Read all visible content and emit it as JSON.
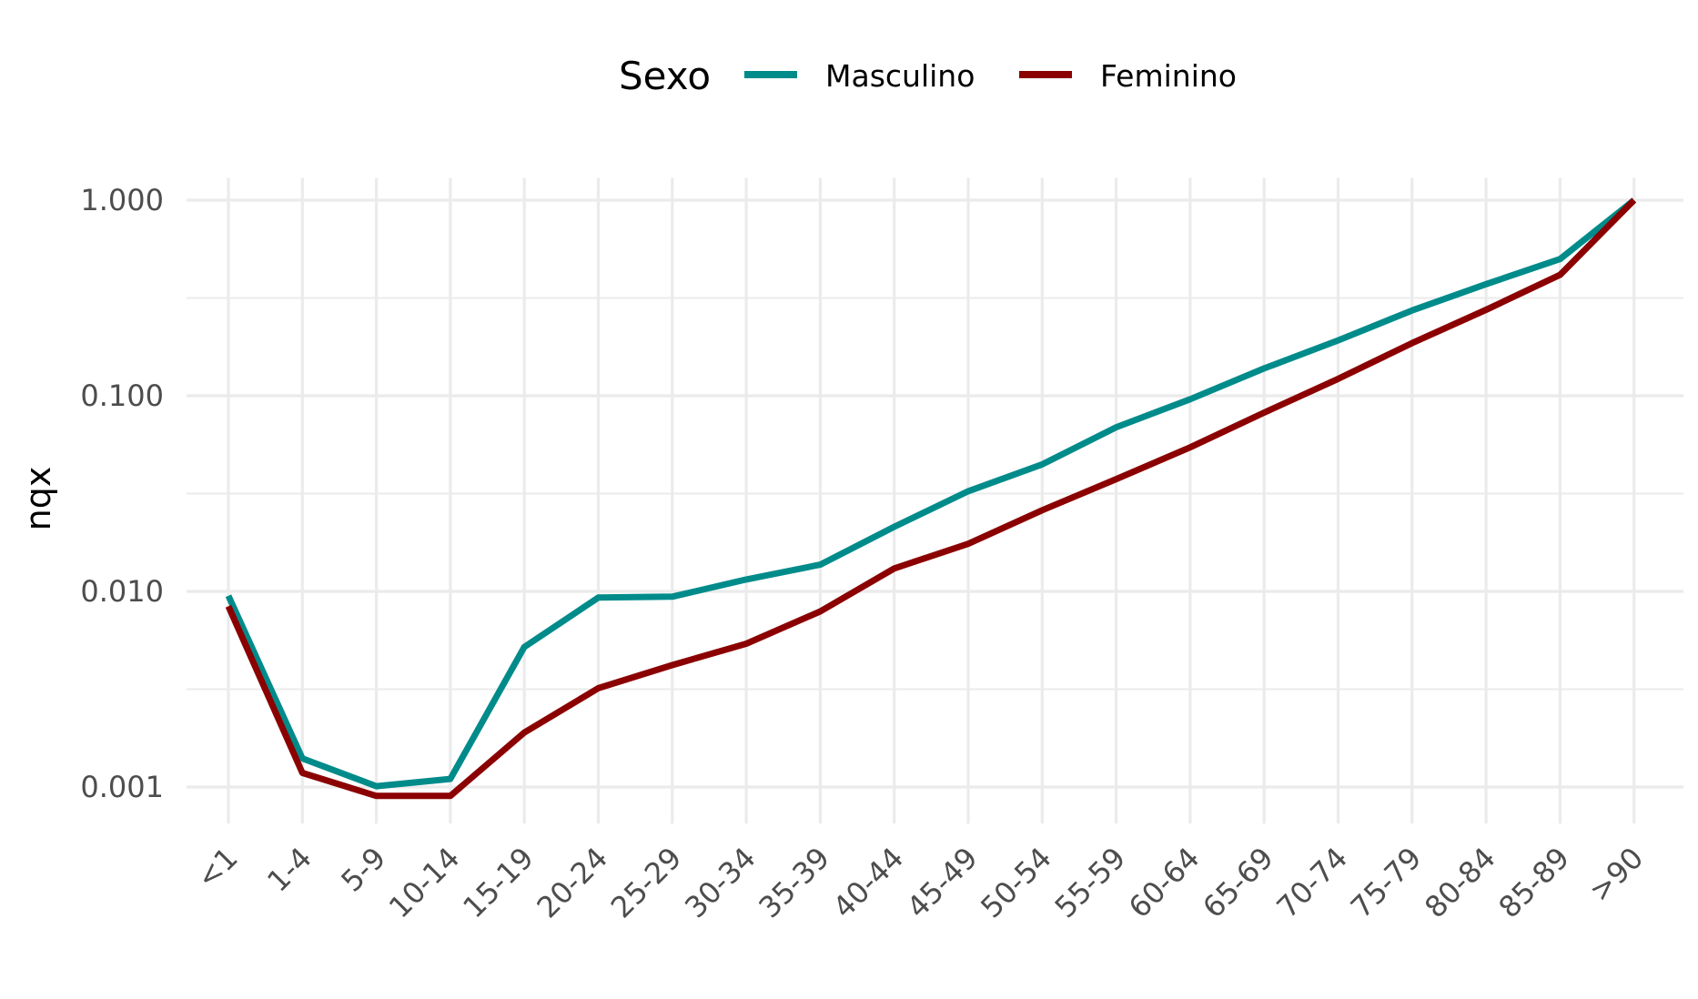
{
  "chart_data": {
    "type": "line",
    "title": "",
    "xlabel": "",
    "ylabel": "nqx",
    "yscale": "log",
    "ylim": [
      0.00065,
      1.3
    ],
    "yticks": [
      0.001,
      0.01,
      0.1,
      1.0
    ],
    "ytick_labels": [
      "0.001",
      "0.010",
      "0.100",
      "1.000"
    ],
    "grid": true,
    "legend": {
      "title": "Sexo",
      "placement": "top"
    },
    "categories": [
      "<1",
      "1-4",
      "5-9",
      "10-14",
      "15-19",
      "20-24",
      "25-29",
      "30-34",
      "35-39",
      "40-44",
      "45-49",
      "50-54",
      "55-59",
      "60-64",
      "65-69",
      "70-74",
      "75-79",
      "80-84",
      "85-89",
      ">90"
    ],
    "series": [
      {
        "name": "Masculino",
        "color": "#008B8B",
        "values": [
          0.0095,
          0.0014,
          0.00101,
          0.0011,
          0.0052,
          0.0093,
          0.0094,
          0.0115,
          0.0137,
          0.0214,
          0.0325,
          0.0446,
          0.069,
          0.096,
          0.138,
          0.192,
          0.273,
          0.372,
          0.5,
          1.0
        ]
      },
      {
        "name": "Feminino",
        "color": "#8B0000",
        "values": [
          0.0084,
          0.00118,
          0.0009,
          0.0009,
          0.0019,
          0.0032,
          0.0042,
          0.0054,
          0.0079,
          0.0131,
          0.0175,
          0.026,
          0.0375,
          0.0545,
          0.082,
          0.122,
          0.186,
          0.275,
          0.415,
          1.0
        ]
      }
    ]
  }
}
